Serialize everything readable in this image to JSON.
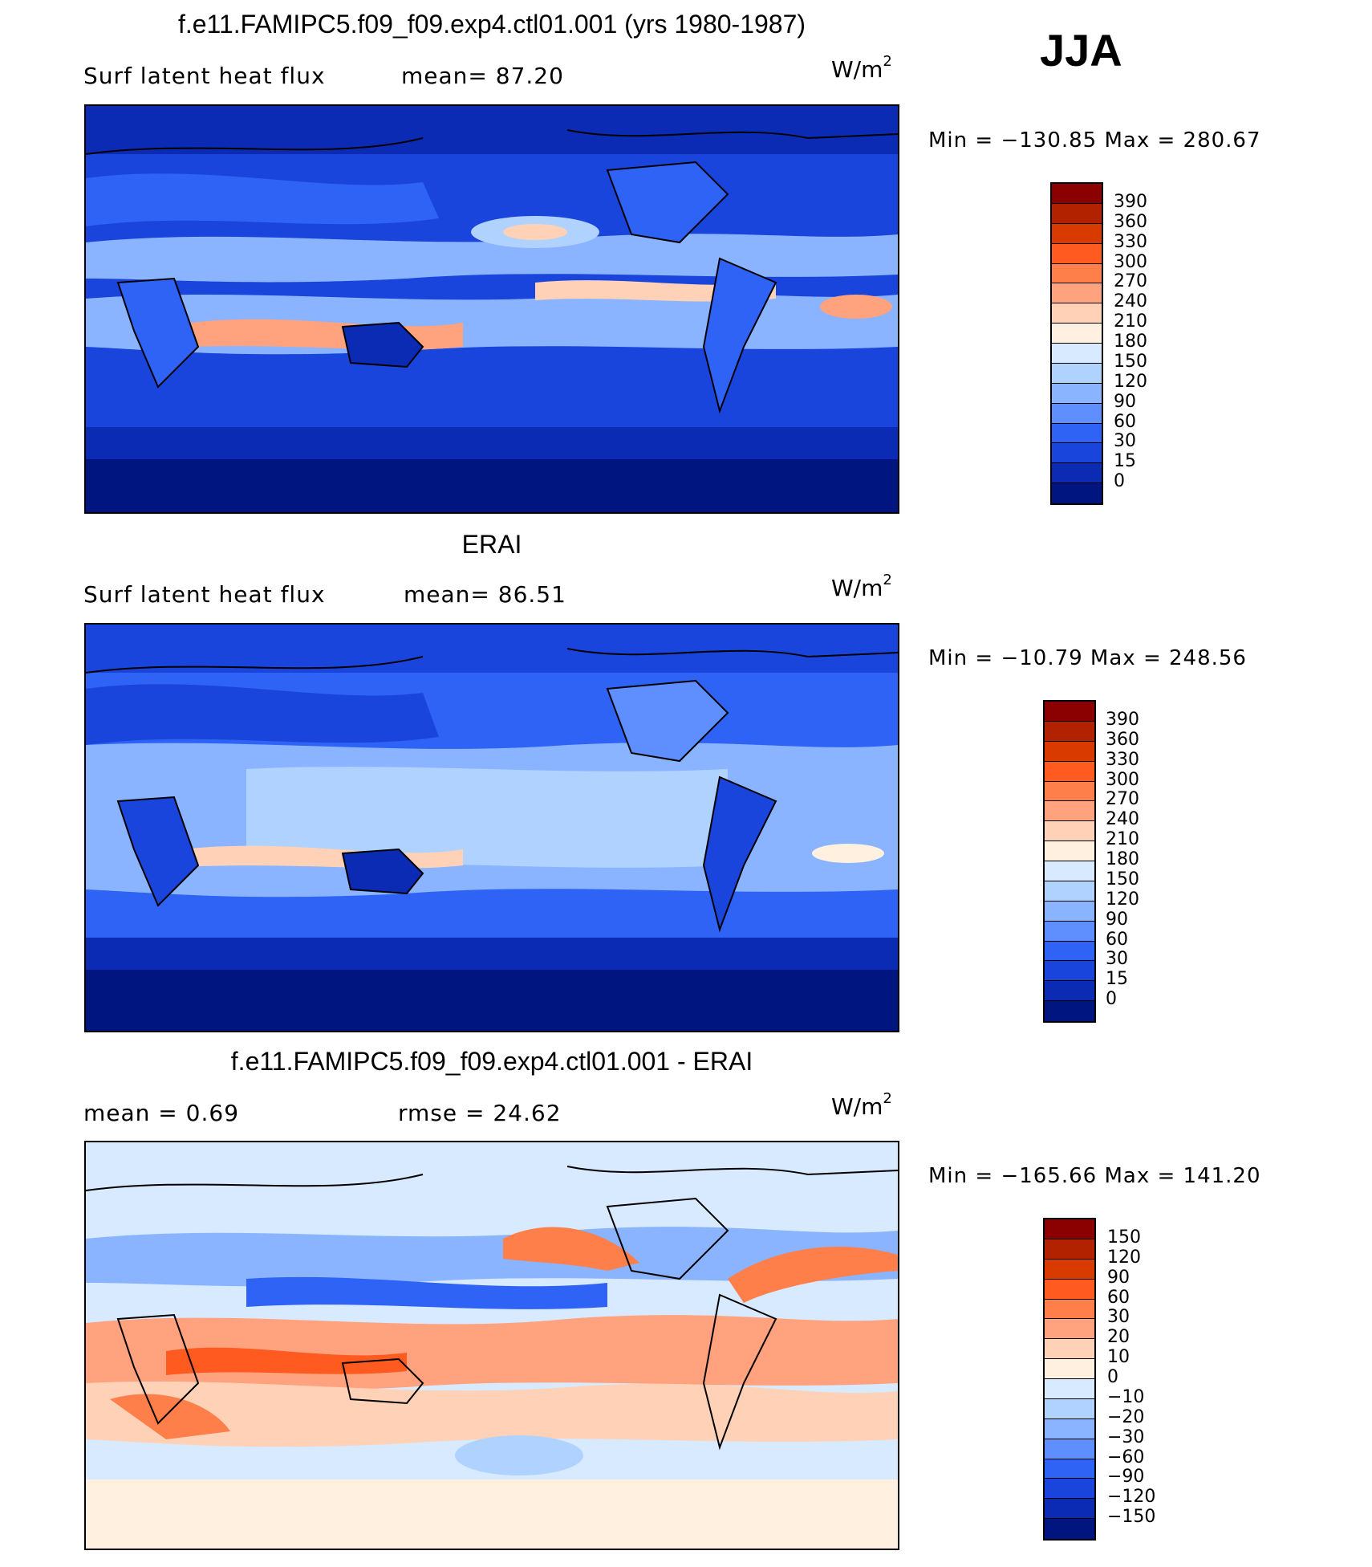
{
  "season": "JJA",
  "panels": [
    {
      "id": "model",
      "title": "f.e11.FAMIPC5.f09_f09.exp4.ctl01.001 (yrs 1980-1987)",
      "left_label": "Surf  latent  heat  flux",
      "center_label": "mean=   87.20",
      "unit_base": "W/m",
      "unit_exp": "2",
      "minmax": "Min  =  −130.85  Max  =  280.67",
      "colorbar": {
        "colors": [
          "#8b0000",
          "#b22200",
          "#d93a00",
          "#ff5a1f",
          "#ff7f4a",
          "#ffa27d",
          "#ffd2b8",
          "#fff0e0",
          "#d8eaff",
          "#b0d2ff",
          "#8ab4ff",
          "#5f8fff",
          "#2f63f5",
          "#1a45dc",
          "#0b2bb5",
          "#00157f"
        ],
        "labels": [
          "390",
          "360",
          "330",
          "300",
          "270",
          "240",
          "210",
          "180",
          "150",
          "120",
          "90",
          "60",
          "30",
          "15",
          "0"
        ]
      }
    },
    {
      "id": "obs",
      "title": "ERAI",
      "left_label": "Surf  latent  heat  flux",
      "center_label": "mean=   86.51",
      "unit_base": "W/m",
      "unit_exp": "2",
      "minmax": "Min  =  −10.79  Max  =  248.56",
      "colorbar": {
        "colors": [
          "#8b0000",
          "#b22200",
          "#d93a00",
          "#ff5a1f",
          "#ff7f4a",
          "#ffa27d",
          "#ffd2b8",
          "#fff0e0",
          "#d8eaff",
          "#b0d2ff",
          "#8ab4ff",
          "#5f8fff",
          "#2f63f5",
          "#1a45dc",
          "#0b2bb5",
          "#00157f"
        ],
        "labels": [
          "390",
          "360",
          "330",
          "300",
          "270",
          "240",
          "210",
          "180",
          "150",
          "120",
          "90",
          "60",
          "30",
          "15",
          "0"
        ]
      }
    },
    {
      "id": "diff",
      "title": "f.e11.FAMIPC5.f09_f09.exp4.ctl01.001 - ERAI",
      "left_label": "mean  =     0.69",
      "center_label": "rmse  =    24.62",
      "unit_base": "W/m",
      "unit_exp": "2",
      "minmax": "Min  =  −165.66  Max  =  141.20",
      "colorbar": {
        "colors": [
          "#8b0000",
          "#b22200",
          "#d93a00",
          "#ff5a1f",
          "#ff7f4a",
          "#ffa27d",
          "#ffd2b8",
          "#fff0e0",
          "#d8eaff",
          "#b0d2ff",
          "#8ab4ff",
          "#5f8fff",
          "#2f63f5",
          "#1a45dc",
          "#0b2bb5",
          "#00157f"
        ],
        "labels": [
          "150",
          "120",
          "90",
          "60",
          "30",
          "20",
          "10",
          "0",
          "−10",
          "−20",
          "−30",
          "−60",
          "−90",
          "−120",
          "−150"
        ]
      }
    }
  ]
}
